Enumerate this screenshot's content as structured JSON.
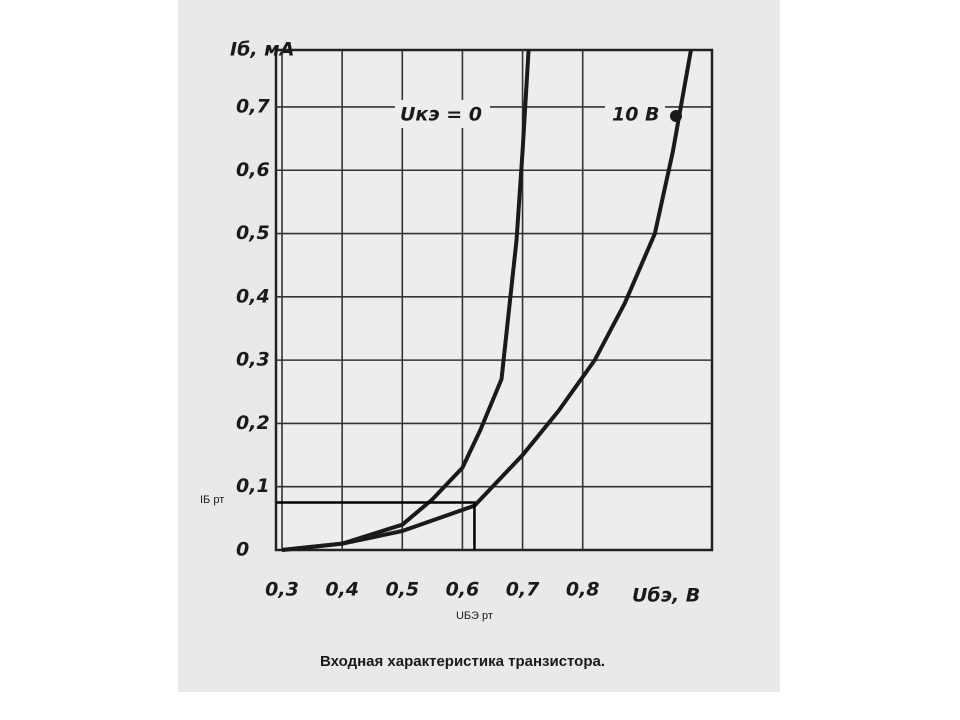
{
  "chart_data": {
    "type": "line",
    "ylabel": "Iб, мА",
    "xlabel": "Uбэ, В",
    "caption": "Входная характеристика транзистора.",
    "xlim": [
      0.29,
      1.015
    ],
    "ylim": [
      0,
      0.79
    ],
    "xticks": [
      {
        "value": 0.3,
        "label": "0,3"
      },
      {
        "value": 0.4,
        "label": "0,4"
      },
      {
        "value": 0.5,
        "label": "0,5"
      },
      {
        "value": 0.6,
        "label": "0,6"
      },
      {
        "value": 0.7,
        "label": "0,7"
      },
      {
        "value": 0.8,
        "label": "0,8"
      }
    ],
    "yticks": [
      0,
      {
        "value": 0.1,
        "label": "0,1"
      },
      {
        "value": 0.2,
        "label": "0,2"
      },
      {
        "value": 0.3,
        "label": "0,3"
      },
      {
        "value": 0.4,
        "label": "0,4"
      },
      {
        "value": 0.5,
        "label": "0,5"
      },
      {
        "value": 0.6,
        "label": "0,6"
      },
      {
        "value": 0.7,
        "label": "0,7"
      }
    ],
    "grid": true,
    "series": [
      {
        "name": "Uкэ = 0",
        "color": "#1a1a1a",
        "x": [
          0.3,
          0.4,
          0.5,
          0.55,
          0.6,
          0.63,
          0.665,
          0.69,
          0.7,
          0.71
        ],
        "values": [
          0,
          0.01,
          0.04,
          0.08,
          0.13,
          0.19,
          0.27,
          0.49,
          0.63,
          0.79
        ]
      },
      {
        "name": "10 В",
        "color": "#1a1a1a",
        "x": [
          0.3,
          0.4,
          0.5,
          0.62,
          0.7,
          0.76,
          0.82,
          0.87,
          0.92,
          0.95,
          0.98
        ],
        "values": [
          0,
          0.01,
          0.03,
          0.07,
          0.15,
          0.22,
          0.3,
          0.39,
          0.5,
          0.63,
          0.79
        ]
      }
    ],
    "operating_point": {
      "x": 0.62,
      "y": 0.075,
      "x_label": "UБЭ рт",
      "y_label": "IБ рт"
    }
  }
}
